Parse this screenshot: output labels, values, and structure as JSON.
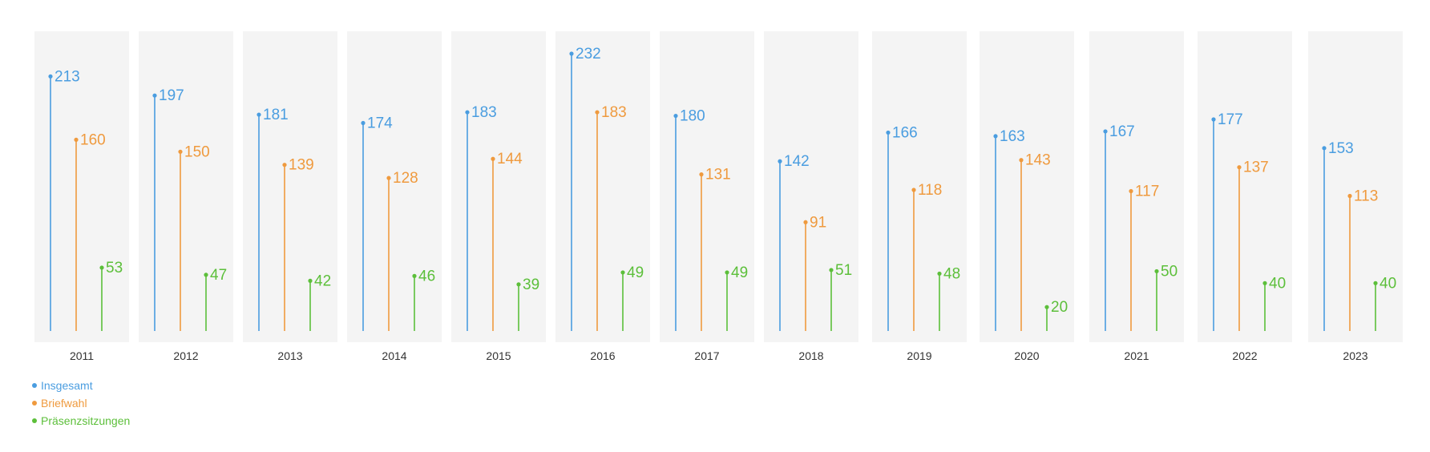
{
  "colors": {
    "insgesamt": "#4a9de0",
    "briefwahl": "#ef9a3e",
    "praesenz": "#5cbf3a",
    "panel_bg": "#f4f4f4",
    "axis_text": "#333333"
  },
  "legend": {
    "items": [
      {
        "label": "Insgesamt",
        "color": "#4a9de0"
      },
      {
        "label": "Briefwahl",
        "color": "#ef9a3e"
      },
      {
        "label": "Präsenzsitzungen",
        "color": "#5cbf3a"
      }
    ]
  },
  "chart_data": {
    "type": "bar",
    "style": "lollipop small multiples, one panel per year",
    "categories": [
      "2011",
      "2012",
      "2013",
      "2014",
      "2015",
      "2016",
      "2017",
      "2018",
      "2019",
      "2020",
      "2021",
      "2022",
      "2023"
    ],
    "series": [
      {
        "name": "Insgesamt",
        "color": "#4a9de0",
        "values": [
          213,
          197,
          181,
          174,
          183,
          232,
          180,
          142,
          166,
          163,
          167,
          177,
          153
        ]
      },
      {
        "name": "Briefwahl",
        "color": "#ef9a3e",
        "values": [
          160,
          150,
          139,
          128,
          144,
          183,
          131,
          91,
          118,
          143,
          117,
          137,
          113
        ]
      },
      {
        "name": "Präsenzsitzungen",
        "color": "#5cbf3a",
        "values": [
          53,
          47,
          42,
          46,
          39,
          49,
          49,
          51,
          48,
          20,
          50,
          40,
          40
        ]
      }
    ],
    "ylim": [
      0,
      232
    ],
    "grid": false,
    "legend_position": "bottom-left"
  }
}
